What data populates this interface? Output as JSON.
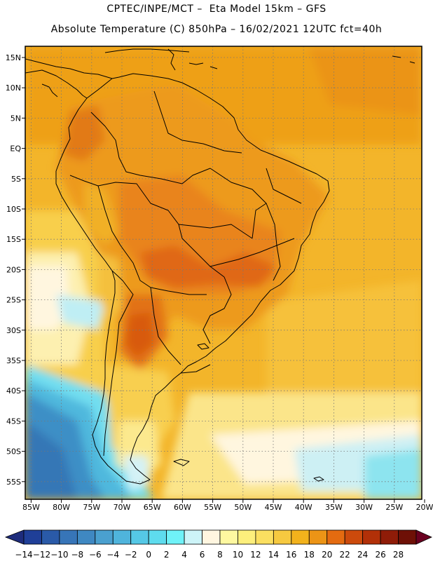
{
  "header": {
    "line1": "CPTEC/INPE/MCT –  Eta Model 15km – GFS",
    "line2": "Absolute Temperature (C) 850hPa – 16/02/2021 12UTC fct=40h"
  },
  "axes": {
    "lat_labels": [
      "15N",
      "10N",
      "5N",
      "EQ",
      "5S",
      "10S",
      "15S",
      "20S",
      "25S",
      "30S",
      "35S",
      "40S",
      "45S",
      "50S",
      "55S"
    ],
    "lon_labels": [
      "85W",
      "80W",
      "75W",
      "70W",
      "65W",
      "60W",
      "55W",
      "50W",
      "45W",
      "40W",
      "35W",
      "30W",
      "25W",
      "20W"
    ],
    "lat_range": [
      -58,
      16.8
    ],
    "lon_range": [
      -85.4,
      -20
    ]
  },
  "colorbar": {
    "labels": [
      "-14",
      "-12",
      "-10",
      "-8",
      "-6",
      "-4",
      "-2",
      "0",
      "2",
      "4",
      "6",
      "8",
      "10",
      "12",
      "14",
      "16",
      "18",
      "20",
      "22",
      "24",
      "26",
      "28"
    ],
    "colors": [
      "#1f3f98",
      "#2a5aa8",
      "#3775b8",
      "#3f88c2",
      "#4aa0cf",
      "#4fb4dc",
      "#55c8e6",
      "#5edcee",
      "#6ff2f8",
      "#cdf4f8",
      "#fff6e0",
      "#fef8a0",
      "#fdef7c",
      "#fbdf60",
      "#f6c940",
      "#f2b21c",
      "#ec9416",
      "#e46b10",
      "#cc4a0c",
      "#b23008",
      "#8f1c08",
      "#6e1006"
    ],
    "under_color": "#1e2c7c",
    "over_color": "#6a0020"
  },
  "map": {
    "icons": [
      "land-boundary-lines",
      "grid-lines"
    ]
  }
}
